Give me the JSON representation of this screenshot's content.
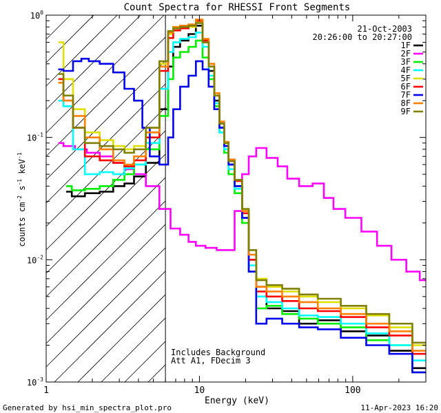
{
  "chart_data": {
    "type": "line",
    "title": "Count Spectra for RHESSI Front Segments",
    "xlabel": "Energy (keV)",
    "ylabel_parts": {
      "a": "counts cm",
      "b": "-2",
      "c": " s",
      "d": "-1",
      "e": " keV",
      "f": "-1"
    },
    "xscale": "log",
    "yscale": "log",
    "xlim": [
      1,
      300
    ],
    "ylim": [
      0.001,
      1.0
    ],
    "x_ticks": [
      {
        "v": 1,
        "label": "1"
      },
      {
        "v": 10,
        "label": "10"
      },
      {
        "v": 100,
        "label": "100"
      }
    ],
    "y_ticks": [
      {
        "v": 1,
        "base": "10",
        "exp": "0"
      },
      {
        "v": 0.1,
        "base": "10",
        "exp": "-1"
      },
      {
        "v": 0.01,
        "base": "10",
        "exp": "-2"
      },
      {
        "v": 0.001,
        "base": "10",
        "exp": "-3"
      }
    ],
    "shaded_region_keV": [
      1,
      6
    ],
    "date": "21-Oct-2003",
    "time_range": "20:26:00 to 20:27:00",
    "annotation_lines": [
      "Includes Background",
      "Att A1, FDecim 3"
    ],
    "legend_position": "top-right",
    "series": [
      {
        "name": "1F",
        "color": "#000000",
        "points": [
          [
            1.35,
            0.036
          ],
          [
            1.6,
            0.033
          ],
          [
            2,
            0.035
          ],
          [
            2.5,
            0.036
          ],
          [
            3,
            0.04
          ],
          [
            3.5,
            0.042
          ],
          [
            4,
            0.048
          ],
          [
            5,
            0.062
          ],
          [
            6,
            0.17
          ],
          [
            6.5,
            0.38
          ],
          [
            7,
            0.55
          ],
          [
            8,
            0.62
          ],
          [
            9,
            0.7
          ],
          [
            10,
            0.82
          ],
          [
            11,
            0.6
          ],
          [
            12,
            0.35
          ],
          [
            13,
            0.2
          ],
          [
            14,
            0.12
          ],
          [
            15,
            0.085
          ],
          [
            16,
            0.06
          ],
          [
            18,
            0.04
          ],
          [
            20,
            0.022
          ],
          [
            22,
            0.01
          ],
          [
            25,
            0.006
          ],
          [
            30,
            0.004
          ],
          [
            40,
            0.0038
          ],
          [
            50,
            0.003
          ],
          [
            70,
            0.0032
          ],
          [
            100,
            0.0026
          ],
          [
            150,
            0.0024
          ],
          [
            200,
            0.0018
          ],
          [
            300,
            0.0013
          ]
        ]
      },
      {
        "name": "2F",
        "color": "#ff00ff",
        "points": [
          [
            1.2,
            0.09
          ],
          [
            1.4,
            0.085
          ],
          [
            1.7,
            0.08
          ],
          [
            2,
            0.075
          ],
          [
            2.5,
            0.07
          ],
          [
            3,
            0.062
          ],
          [
            3.5,
            0.055
          ],
          [
            4,
            0.05
          ],
          [
            5,
            0.04
          ],
          [
            6,
            0.026
          ],
          [
            7,
            0.018
          ],
          [
            8,
            0.016
          ],
          [
            9,
            0.014
          ],
          [
            10,
            0.013
          ],
          [
            12,
            0.0125
          ],
          [
            14,
            0.012
          ],
          [
            16,
            0.012
          ],
          [
            18,
            0.025
          ],
          [
            20,
            0.05
          ],
          [
            22,
            0.07
          ],
          [
            25,
            0.082
          ],
          [
            30,
            0.068
          ],
          [
            35,
            0.058
          ],
          [
            40,
            0.046
          ],
          [
            50,
            0.04
          ],
          [
            60,
            0.042
          ],
          [
            70,
            0.032
          ],
          [
            80,
            0.026
          ],
          [
            100,
            0.022
          ],
          [
            130,
            0.017
          ],
          [
            160,
            0.013
          ],
          [
            200,
            0.01
          ],
          [
            250,
            0.008
          ],
          [
            300,
            0.0068
          ]
        ]
      },
      {
        "name": "3F",
        "color": "#00ee00",
        "points": [
          [
            1.35,
            0.04
          ],
          [
            1.6,
            0.037
          ],
          [
            2,
            0.038
          ],
          [
            2.5,
            0.04
          ],
          [
            3,
            0.045
          ],
          [
            3.5,
            0.05
          ],
          [
            4,
            0.06
          ],
          [
            5,
            0.08
          ],
          [
            6,
            0.15
          ],
          [
            6.5,
            0.3
          ],
          [
            7,
            0.45
          ],
          [
            8,
            0.5
          ],
          [
            9,
            0.55
          ],
          [
            10,
            0.62
          ],
          [
            11,
            0.45
          ],
          [
            12,
            0.3
          ],
          [
            13,
            0.18
          ],
          [
            14,
            0.11
          ],
          [
            15,
            0.075
          ],
          [
            16,
            0.05
          ],
          [
            18,
            0.035
          ],
          [
            20,
            0.02
          ],
          [
            22,
            0.008
          ],
          [
            25,
            0.004
          ],
          [
            30,
            0.0042
          ],
          [
            40,
            0.0036
          ],
          [
            50,
            0.0033
          ],
          [
            70,
            0.003
          ],
          [
            100,
            0.0028
          ],
          [
            150,
            0.0022
          ],
          [
            200,
            0.002
          ],
          [
            300,
            0.0012
          ]
        ]
      },
      {
        "name": "4F",
        "color": "#00ffff",
        "points": [
          [
            1.2,
            0.2
          ],
          [
            1.4,
            0.18
          ],
          [
            1.6,
            0.08
          ],
          [
            2,
            0.05
          ],
          [
            2.5,
            0.052
          ],
          [
            3,
            0.05
          ],
          [
            3.5,
            0.056
          ],
          [
            4,
            0.06
          ],
          [
            5,
            0.09
          ],
          [
            6,
            0.25
          ],
          [
            6.5,
            0.5
          ],
          [
            7,
            0.6
          ],
          [
            8,
            0.64
          ],
          [
            9,
            0.66
          ],
          [
            10,
            0.72
          ],
          [
            11,
            0.55
          ],
          [
            12,
            0.32
          ],
          [
            13,
            0.19
          ],
          [
            14,
            0.11
          ],
          [
            15,
            0.08
          ],
          [
            16,
            0.055
          ],
          [
            18,
            0.038
          ],
          [
            20,
            0.022
          ],
          [
            22,
            0.009
          ],
          [
            25,
            0.005
          ],
          [
            30,
            0.0045
          ],
          [
            40,
            0.004
          ],
          [
            50,
            0.0035
          ],
          [
            70,
            0.0034
          ],
          [
            100,
            0.003
          ],
          [
            150,
            0.0025
          ],
          [
            200,
            0.002
          ],
          [
            300,
            0.0015
          ]
        ]
      },
      {
        "name": "5F",
        "color": "#e0e000",
        "points": [
          [
            1.2,
            0.6
          ],
          [
            1.4,
            0.3
          ],
          [
            1.6,
            0.17
          ],
          [
            2,
            0.11
          ],
          [
            2.5,
            0.095
          ],
          [
            3,
            0.085
          ],
          [
            3.5,
            0.08
          ],
          [
            4,
            0.085
          ],
          [
            5,
            0.12
          ],
          [
            6,
            0.4
          ],
          [
            6.5,
            0.7
          ],
          [
            7,
            0.75
          ],
          [
            8,
            0.78
          ],
          [
            9,
            0.8
          ],
          [
            10,
            0.88
          ],
          [
            11,
            0.62
          ],
          [
            12,
            0.38
          ],
          [
            13,
            0.22
          ],
          [
            14,
            0.13
          ],
          [
            15,
            0.09
          ],
          [
            16,
            0.065
          ],
          [
            18,
            0.045
          ],
          [
            20,
            0.025
          ],
          [
            22,
            0.012
          ],
          [
            25,
            0.007
          ],
          [
            30,
            0.006
          ],
          [
            40,
            0.0055
          ],
          [
            50,
            0.005
          ],
          [
            70,
            0.0045
          ],
          [
            100,
            0.004
          ],
          [
            150,
            0.0035
          ],
          [
            200,
            0.0028
          ],
          [
            300,
            0.002
          ]
        ]
      },
      {
        "name": "6F",
        "color": "#ff0000",
        "points": [
          [
            1.2,
            0.3
          ],
          [
            1.4,
            0.2
          ],
          [
            1.6,
            0.12
          ],
          [
            2,
            0.07
          ],
          [
            2.5,
            0.065
          ],
          [
            3,
            0.062
          ],
          [
            3.5,
            0.058
          ],
          [
            4,
            0.065
          ],
          [
            5,
            0.1
          ],
          [
            6,
            0.35
          ],
          [
            6.5,
            0.65
          ],
          [
            7,
            0.75
          ],
          [
            8,
            0.78
          ],
          [
            9,
            0.82
          ],
          [
            10,
            0.9
          ],
          [
            11,
            0.62
          ],
          [
            12,
            0.38
          ],
          [
            13,
            0.22
          ],
          [
            14,
            0.13
          ],
          [
            15,
            0.09
          ],
          [
            16,
            0.064
          ],
          [
            18,
            0.044
          ],
          [
            20,
            0.024
          ],
          [
            22,
            0.01
          ],
          [
            25,
            0.0055
          ],
          [
            30,
            0.005
          ],
          [
            40,
            0.0046
          ],
          [
            50,
            0.004
          ],
          [
            70,
            0.0038
          ],
          [
            100,
            0.0034
          ],
          [
            150,
            0.0028
          ],
          [
            200,
            0.0024
          ],
          [
            300,
            0.0017
          ]
        ]
      },
      {
        "name": "7F",
        "color": "#0000ee",
        "points": [
          [
            1.2,
            0.36
          ],
          [
            1.4,
            0.35
          ],
          [
            1.6,
            0.42
          ],
          [
            1.8,
            0.44
          ],
          [
            2,
            0.42
          ],
          [
            2.5,
            0.4
          ],
          [
            3,
            0.34
          ],
          [
            3.5,
            0.25
          ],
          [
            4,
            0.2
          ],
          [
            4.5,
            0.12
          ],
          [
            5,
            0.07
          ],
          [
            6,
            0.06
          ],
          [
            6.5,
            0.1
          ],
          [
            7,
            0.17
          ],
          [
            8,
            0.26
          ],
          [
            9,
            0.32
          ],
          [
            10,
            0.42
          ],
          [
            11,
            0.36
          ],
          [
            12,
            0.26
          ],
          [
            13,
            0.17
          ],
          [
            14,
            0.12
          ],
          [
            15,
            0.085
          ],
          [
            16,
            0.06
          ],
          [
            18,
            0.04
          ],
          [
            20,
            0.022
          ],
          [
            22,
            0.008
          ],
          [
            25,
            0.003
          ],
          [
            30,
            0.0033
          ],
          [
            40,
            0.003
          ],
          [
            50,
            0.0028
          ],
          [
            70,
            0.0027
          ],
          [
            100,
            0.0023
          ],
          [
            150,
            0.002
          ],
          [
            200,
            0.0017
          ],
          [
            300,
            0.0012
          ]
        ]
      },
      {
        "name": "8F",
        "color": "#ff7f00",
        "points": [
          [
            1.2,
            0.28
          ],
          [
            1.4,
            0.2
          ],
          [
            1.6,
            0.15
          ],
          [
            2,
            0.1
          ],
          [
            2.5,
            0.08
          ],
          [
            3,
            0.065
          ],
          [
            3.5,
            0.06
          ],
          [
            4,
            0.07
          ],
          [
            5,
            0.11
          ],
          [
            6,
            0.38
          ],
          [
            6.5,
            0.72
          ],
          [
            7,
            0.8
          ],
          [
            8,
            0.82
          ],
          [
            9,
            0.84
          ],
          [
            10,
            0.92
          ],
          [
            11,
            0.64
          ],
          [
            12,
            0.4
          ],
          [
            13,
            0.23
          ],
          [
            14,
            0.135
          ],
          [
            15,
            0.092
          ],
          [
            16,
            0.066
          ],
          [
            18,
            0.045
          ],
          [
            20,
            0.025
          ],
          [
            22,
            0.011
          ],
          [
            25,
            0.006
          ],
          [
            30,
            0.0055
          ],
          [
            40,
            0.005
          ],
          [
            50,
            0.0045
          ],
          [
            70,
            0.004
          ],
          [
            100,
            0.0036
          ],
          [
            150,
            0.003
          ],
          [
            200,
            0.0026
          ],
          [
            300,
            0.0018
          ]
        ]
      },
      {
        "name": "9F",
        "color": "#808000",
        "points": [
          [
            1.2,
            0.33
          ],
          [
            1.4,
            0.22
          ],
          [
            1.6,
            0.12
          ],
          [
            2,
            0.09
          ],
          [
            2.5,
            0.085
          ],
          [
            3,
            0.08
          ],
          [
            3.5,
            0.075
          ],
          [
            4,
            0.08
          ],
          [
            5,
            0.12
          ],
          [
            6,
            0.42
          ],
          [
            6.5,
            0.74
          ],
          [
            7,
            0.78
          ],
          [
            8,
            0.8
          ],
          [
            9,
            0.82
          ],
          [
            10,
            0.86
          ],
          [
            11,
            0.6
          ],
          [
            12,
            0.38
          ],
          [
            13,
            0.22
          ],
          [
            14,
            0.13
          ],
          [
            15,
            0.09
          ],
          [
            16,
            0.064
          ],
          [
            18,
            0.045
          ],
          [
            20,
            0.026
          ],
          [
            22,
            0.012
          ],
          [
            25,
            0.0068
          ],
          [
            30,
            0.0062
          ],
          [
            40,
            0.0058
          ],
          [
            50,
            0.0052
          ],
          [
            70,
            0.0048
          ],
          [
            100,
            0.0042
          ],
          [
            150,
            0.0036
          ],
          [
            200,
            0.003
          ],
          [
            300,
            0.0021
          ]
        ]
      }
    ]
  },
  "footer": {
    "generated_by": "Generated by hsi_min_spectra_plot.pro",
    "timestamp": "11-Apr-2023 16:20"
  }
}
